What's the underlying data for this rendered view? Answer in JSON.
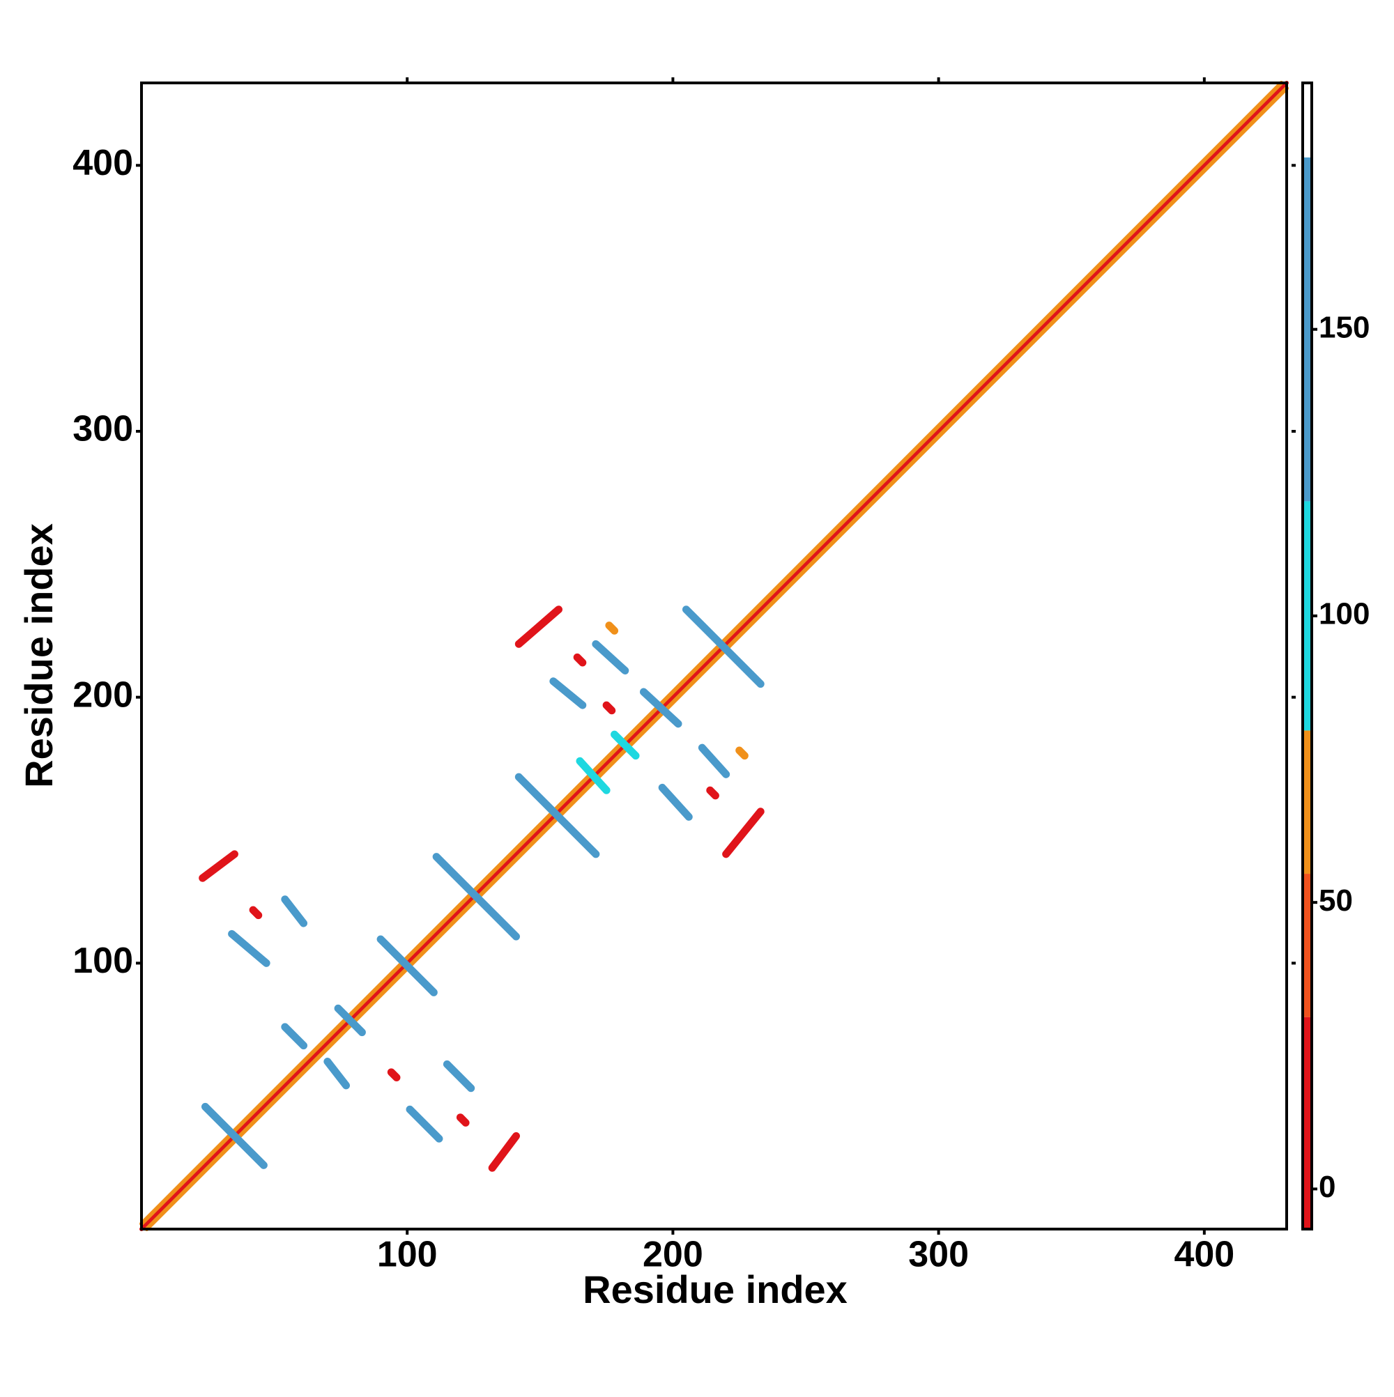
{
  "chart_data": {
    "type": "contact-map",
    "xlabel": "Residue index",
    "ylabel": "Residue index",
    "xlim": [
      0,
      431
    ],
    "ylim": [
      0,
      431
    ],
    "xticks": [
      100,
      200,
      300,
      400
    ],
    "yticks": [
      100,
      200,
      300,
      400
    ],
    "colorbar": {
      "lim": [
        -7,
        193
      ],
      "ticks": [
        0,
        50,
        100,
        150
      ],
      "levels": [
        -7,
        30,
        55,
        80,
        120,
        180,
        193
      ],
      "colors": [
        "#e0141a",
        "#f0521e",
        "#f0901a",
        "#1ed8e0",
        "#4a9acb",
        "#ffffff"
      ]
    },
    "bands": [
      {
        "x": [
          0,
          431
        ],
        "y": [
          0,
          431
        ],
        "value": 10
      },
      {
        "x": [
          2,
          431
        ],
        "y": [
          0,
          429
        ],
        "value": 60
      },
      {
        "x": [
          0,
          429
        ],
        "y": [
          2,
          431
        ],
        "value": 60
      },
      {
        "x": [
          205,
          233
        ],
        "y": [
          233,
          205
        ],
        "value": 150
      },
      {
        "x": [
          142,
          171
        ],
        "y": [
          170,
          141
        ],
        "value": 150
      },
      {
        "x": [
          111,
          141
        ],
        "y": [
          140,
          110
        ],
        "value": 150
      },
      {
        "x": [
          90,
          110
        ],
        "y": [
          109,
          89
        ],
        "value": 150
      },
      {
        "x": [
          74,
          83
        ],
        "y": [
          83,
          74
        ],
        "value": 150
      },
      {
        "x": [
          54,
          61
        ],
        "y": [
          76,
          69
        ],
        "value": 150
      },
      {
        "x": [
          70,
          77
        ],
        "y": [
          63,
          54
        ],
        "value": 150
      },
      {
        "x": [
          115,
          124
        ],
        "y": [
          62,
          53
        ],
        "value": 150
      },
      {
        "x": [
          101,
          112
        ],
        "y": [
          45,
          34
        ],
        "value": 150
      },
      {
        "x": [
          24,
          46
        ],
        "y": [
          46,
          24
        ],
        "value": 150
      },
      {
        "x": [
          34,
          47
        ],
        "y": [
          111,
          100
        ],
        "value": 150
      },
      {
        "x": [
          54,
          61
        ],
        "y": [
          124,
          115
        ],
        "value": 150
      },
      {
        "x": [
          23,
          35
        ],
        "y": [
          132,
          141
        ],
        "value": 15
      },
      {
        "x": [
          132,
          141
        ],
        "y": [
          23,
          35
        ],
        "value": 15
      },
      {
        "x": [
          155,
          166
        ],
        "y": [
          206,
          197
        ],
        "value": 150
      },
      {
        "x": [
          171,
          182
        ],
        "y": [
          220,
          210
        ],
        "value": 150
      },
      {
        "x": [
          142,
          157
        ],
        "y": [
          220,
          233
        ],
        "value": 15
      },
      {
        "x": [
          196,
          206
        ],
        "y": [
          166,
          155
        ],
        "value": 150
      },
      {
        "x": [
          211,
          220
        ],
        "y": [
          181,
          171
        ],
        "value": 150
      },
      {
        "x": [
          220,
          233
        ],
        "y": [
          141,
          157
        ],
        "value": 15
      },
      {
        "x": [
          189,
          202
        ],
        "y": [
          202,
          190
        ],
        "value": 150
      },
      {
        "x": [
          178,
          186
        ],
        "y": [
          186,
          178
        ],
        "value": 100
      },
      {
        "x": [
          165,
          175
        ],
        "y": [
          176,
          165
        ],
        "value": 100
      },
      {
        "x": [
          175,
          177
        ],
        "y": [
          197,
          195
        ],
        "value": 15
      },
      {
        "x": [
          214,
          216
        ],
        "y": [
          165,
          163
        ],
        "value": 15
      },
      {
        "x": [
          225,
          227
        ],
        "y": [
          180,
          178
        ],
        "value": 65
      },
      {
        "x": [
          164,
          166
        ],
        "y": [
          215,
          213
        ],
        "value": 15
      },
      {
        "x": [
          176,
          178
        ],
        "y": [
          227,
          225
        ],
        "value": 65
      },
      {
        "x": [
          42,
          44
        ],
        "y": [
          120,
          118
        ],
        "value": 15
      },
      {
        "x": [
          94,
          96
        ],
        "y": [
          59,
          57
        ],
        "value": 15
      },
      {
        "x": [
          120,
          122
        ],
        "y": [
          42,
          40
        ],
        "value": 15
      }
    ]
  }
}
